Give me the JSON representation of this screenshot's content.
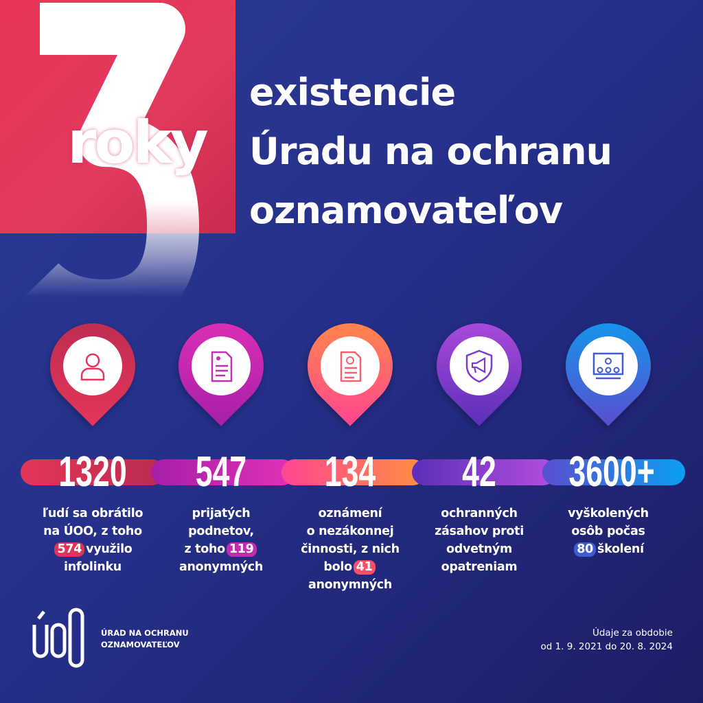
{
  "hero": {
    "number": "3",
    "word_part1": "ro",
    "word_part2": "ky"
  },
  "title": {
    "lines": [
      "existencie",
      "Úradu na ochranu",
      "oznamovateľov"
    ]
  },
  "colors": {
    "background": "#26308a",
    "red_block": "#e93558"
  },
  "stats": [
    {
      "icon": "person-icon",
      "value": "1320",
      "color_from": "#e4355a",
      "color_to": "#b92c4f",
      "lines": [
        {
          "pre": "ľudí sa obrátilo"
        },
        {
          "pre": "na ÚOO, z toho"
        },
        {
          "badge": "574",
          "post": "využilo"
        },
        {
          "pre": "infolinku"
        }
      ],
      "badge_color": "#e0335a"
    },
    {
      "icon": "document-icon",
      "value": "547",
      "color_from": "#a61fa8",
      "color_to": "#e331b8",
      "lines": [
        {
          "pre": "prijatých"
        },
        {
          "pre": "podnetov,"
        },
        {
          "pre": "z toho",
          "badge": "119"
        },
        {
          "pre": "anonymných"
        }
      ],
      "badge_color": "#c02eb0"
    },
    {
      "icon": "report-document-icon",
      "value": "134",
      "color_from": "#ff4591",
      "color_to": "#ff9040",
      "lines": [
        {
          "pre": "oznámení"
        },
        {
          "pre": "o nezákonnej"
        },
        {
          "pre": "činnosti, z nich"
        },
        {
          "pre": "bolo",
          "badge": "41"
        },
        {
          "pre": "anonymných"
        }
      ],
      "badge_color": "#f5506a"
    },
    {
      "icon": "shield-megaphone-icon",
      "value": "42",
      "color_from": "#5a2fb8",
      "color_to": "#b64ee0",
      "lines": [
        {
          "pre": "ochranných"
        },
        {
          "pre": "zásahov proti"
        },
        {
          "pre": "odvetným"
        },
        {
          "pre": "opatreniam"
        }
      ],
      "badge_color": ""
    },
    {
      "icon": "training-icon",
      "value": "3600+",
      "color_from": "#5a4ecf",
      "color_to": "#0aa0f0",
      "lines": [
        {
          "pre": "vyškolených"
        },
        {
          "pre": "osôb počas"
        },
        {
          "badge": "80",
          "post": "školení"
        }
      ],
      "badge_color": "#3e5bd6"
    }
  ],
  "footer": {
    "logo_mark": "ÚOO",
    "org_name": [
      "ÚRAD NA OCHRANU",
      "OZNAMOVATEĽOV"
    ],
    "period": [
      "Údaje za obdobie",
      "od 1. 9. 2021 do 20. 8. 2024"
    ]
  }
}
